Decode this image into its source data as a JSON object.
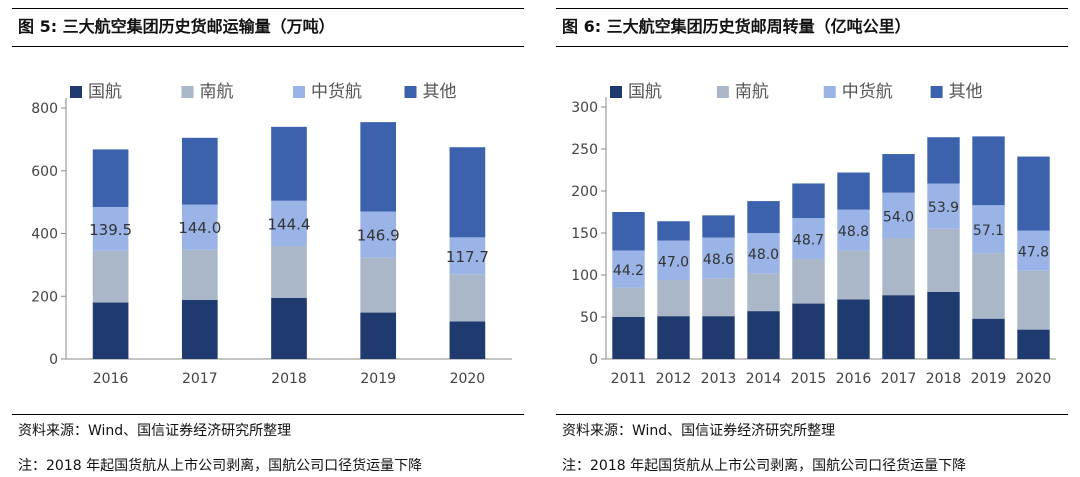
{
  "left": {
    "title": "图 5:  三大航空集团历史货邮运输量（万吨）",
    "source": "资料来源：Wind、国信证券经济研究所整理",
    "note": "注：2018 年起国货航从上市公司剥离，国航公司口径货运量下降"
  },
  "right": {
    "title": "图 6:  三大航空集团历史货邮周转量（亿吨公里）",
    "source": "资料来源：Wind、国信证券经济研究所整理",
    "note": "注：2018 年起国货航从上市公司剥离，国航公司口径货运量下降"
  },
  "colors": {
    "guohang": "#1f3a6e",
    "nanhang": "#a9b7c8",
    "zhonghuo": "#9ab4e8",
    "qita": "#3c62ad"
  },
  "chart_data": [
    {
      "type": "bar",
      "stacked": true,
      "title": "三大航空集团历史货邮运输量（万吨）",
      "categories": [
        "2016",
        "2017",
        "2018",
        "2019",
        "2020"
      ],
      "ylim": [
        0,
        800
      ],
      "yticks": [
        0,
        200,
        400,
        600,
        800
      ],
      "series": [
        {
          "name": "国航",
          "values": [
            180,
            188,
            195,
            148,
            120
          ]
        },
        {
          "name": "南航",
          "values": [
            165,
            160,
            165,
            175,
            150
          ]
        },
        {
          "name": "中货航",
          "values": [
            139.5,
            144.0,
            144.4,
            146.9,
            117.7
          ]
        },
        {
          "name": "其他",
          "values": [
            183.5,
            213.0,
            235.6,
            285.1,
            287.3
          ]
        }
      ],
      "labels": [
        "139.5",
        "144.0",
        "144.4",
        "146.9",
        "117.7"
      ],
      "label_series": "中货航",
      "legend": [
        "国航",
        "南航",
        "中货航",
        "其他"
      ]
    },
    {
      "type": "bar",
      "stacked": true,
      "title": "三大航空集团历史货邮周转量（亿吨公里）",
      "categories": [
        "2011",
        "2012",
        "2013",
        "2014",
        "2015",
        "2016",
        "2017",
        "2018",
        "2019",
        "2020"
      ],
      "ylim": [
        0,
        300
      ],
      "yticks": [
        0,
        50,
        100,
        150,
        200,
        250,
        300
      ],
      "series": [
        {
          "name": "国航",
          "values": [
            50,
            51,
            51,
            57,
            66,
            71,
            76,
            80,
            48,
            35
          ]
        },
        {
          "name": "南航",
          "values": [
            35,
            43,
            45,
            45,
            53,
            58,
            68,
            75,
            78,
            70
          ]
        },
        {
          "name": "中货航",
          "values": [
            44.2,
            47.0,
            48.6,
            48.0,
            48.7,
            48.8,
            54.0,
            53.9,
            57.1,
            47.8
          ]
        },
        {
          "name": "其他",
          "values": [
            45.8,
            23.0,
            26.4,
            38.0,
            41.3,
            44.2,
            46.0,
            55.1,
            81.9,
            88.2
          ]
        }
      ],
      "labels": [
        "44.2",
        "47.0",
        "48.6",
        "48.0",
        "48.7",
        "48.8",
        "54.0",
        "53.9",
        "57.1",
        "47.8"
      ],
      "label_series": "中货航",
      "legend": [
        "国航",
        "南航",
        "中货航",
        "其他"
      ]
    }
  ]
}
